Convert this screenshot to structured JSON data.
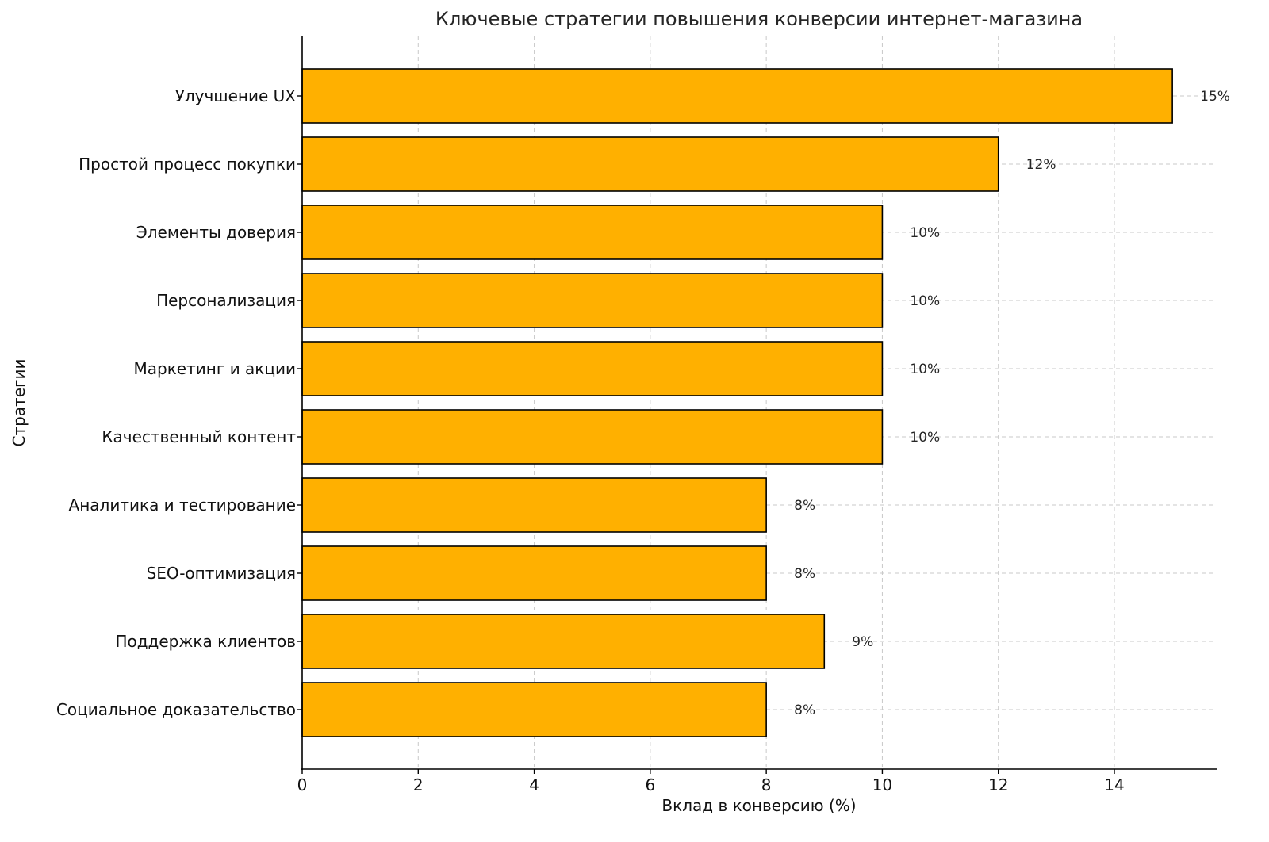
{
  "chart_data": {
    "type": "bar",
    "orientation": "horizontal",
    "title": "Ключевые стратегии повышения конверсии интернет-магазина",
    "xlabel": "Вклад в конверсию (%)",
    "ylabel": "Стратегии",
    "categories": [
      "Улучшение UX",
      "Простой процесс покупки",
      "Элементы доверия",
      "Персонализация",
      "Маркетинг и акции",
      "Качественный контент",
      "Аналитика и тестирование",
      "SEO-оптимизация",
      "Поддержка клиентов",
      "Социальное доказательство"
    ],
    "values": [
      15,
      12,
      10,
      10,
      10,
      10,
      8,
      8,
      9,
      8
    ],
    "data_labels": [
      "15%",
      "12%",
      "10%",
      "10%",
      "10%",
      "10%",
      "8%",
      "8%",
      "9%",
      "8%"
    ],
    "xlim": [
      0,
      15.75
    ],
    "xticks": [
      0,
      2,
      4,
      6,
      8,
      10,
      12,
      14
    ],
    "xtick_labels": [
      "0",
      "2",
      "4",
      "6",
      "8",
      "10",
      "12",
      "14"
    ],
    "grid": true,
    "bar_color": "#FFB000",
    "edge_color": "#000000"
  }
}
